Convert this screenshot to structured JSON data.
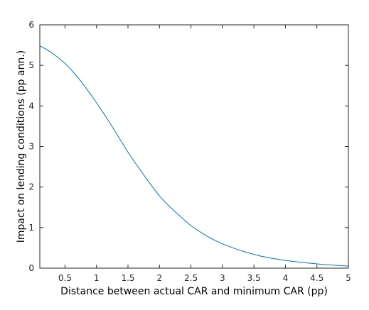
{
  "chart_data": {
    "type": "line",
    "title": "",
    "xlabel": "Distance between actual CAR and minimum CAR (pp)",
    "ylabel": "Impact on lending conditions (pp ann.)",
    "xlim": [
      0.1,
      5
    ],
    "ylim": [
      0,
      6
    ],
    "xticks": [
      0.5,
      1,
      1.5,
      2,
      2.5,
      3,
      3.5,
      4,
      4.5,
      5
    ],
    "xtick_labels": [
      "0.5",
      "1",
      "1.5",
      "2",
      "2.5",
      "3",
      "3.5",
      "4",
      "4.5",
      "5"
    ],
    "yticks": [
      0,
      1,
      2,
      3,
      4,
      5,
      6
    ],
    "ytick_labels": [
      "0",
      "1",
      "2",
      "3",
      "4",
      "5",
      "6"
    ],
    "grid": false,
    "box": true,
    "series": [
      {
        "color": "#0072BD",
        "x": [
          0.1,
          0.2,
          0.3,
          0.4,
          0.5,
          0.6,
          0.7,
          0.8,
          0.9,
          1.0,
          1.1,
          1.2,
          1.3,
          1.4,
          1.5,
          1.6,
          1.7,
          1.8,
          1.9,
          2.0,
          2.1,
          2.2,
          2.3,
          2.4,
          2.5,
          2.6,
          2.7,
          2.8,
          2.9,
          3.0,
          3.2,
          3.4,
          3.6,
          3.8,
          4.0,
          4.2,
          4.4,
          4.6,
          4.8,
          5.0
        ],
        "y": [
          5.48,
          5.4,
          5.3,
          5.18,
          5.05,
          4.89,
          4.71,
          4.51,
          4.3,
          4.08,
          3.85,
          3.61,
          3.36,
          3.11,
          2.86,
          2.63,
          2.41,
          2.19,
          1.98,
          1.78,
          1.61,
          1.46,
          1.32,
          1.18,
          1.05,
          0.94,
          0.84,
          0.75,
          0.67,
          0.6,
          0.48,
          0.38,
          0.3,
          0.24,
          0.19,
          0.15,
          0.12,
          0.09,
          0.07,
          0.05
        ]
      }
    ]
  }
}
